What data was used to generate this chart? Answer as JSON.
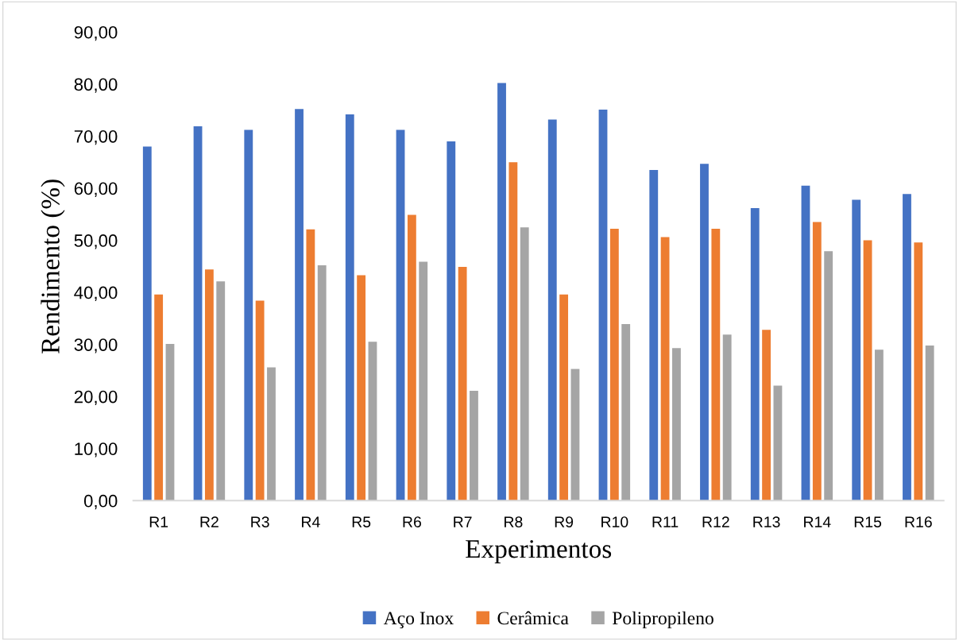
{
  "chart_data": {
    "type": "bar",
    "xlabel": "Experimentos",
    "ylabel": "Rendimento (%)",
    "categories": [
      "R1",
      "R2",
      "R3",
      "R4",
      "R5",
      "R6",
      "R7",
      "R8",
      "R9",
      "R10",
      "R11",
      "R12",
      "R13",
      "R14",
      "R15",
      "R16"
    ],
    "series": [
      {
        "name": "Aço Inox",
        "color": "#4472c4",
        "values": [
          68.0,
          71.9,
          71.2,
          75.2,
          74.2,
          71.2,
          69.0,
          80.2,
          73.2,
          75.1,
          63.5,
          64.7,
          56.2,
          60.5,
          57.8,
          58.9
        ]
      },
      {
        "name": "Cerâmica",
        "color": "#ed7d31",
        "values": [
          39.6,
          44.4,
          38.4,
          52.1,
          43.3,
          54.9,
          44.9,
          65.0,
          39.6,
          52.2,
          50.6,
          52.2,
          32.8,
          53.5,
          50.0,
          49.6
        ]
      },
      {
        "name": "Polipropileno",
        "color": "#a5a5a5",
        "values": [
          30.1,
          42.1,
          25.6,
          45.2,
          30.5,
          45.9,
          21.1,
          52.5,
          25.3,
          33.9,
          29.3,
          31.9,
          22.1,
          47.9,
          29.0,
          29.8
        ]
      }
    ],
    "ylim": [
      0,
      90
    ],
    "yticks": [
      {
        "value": 0,
        "label": "0,00"
      },
      {
        "value": 10,
        "label": "10,00"
      },
      {
        "value": 20,
        "label": "20,00"
      },
      {
        "value": 30,
        "label": "30,00"
      },
      {
        "value": 40,
        "label": "40,00"
      },
      {
        "value": 50,
        "label": "50,00"
      },
      {
        "value": 60,
        "label": "60,00"
      },
      {
        "value": 70,
        "label": "70,00"
      },
      {
        "value": 80,
        "label": "80,00"
      },
      {
        "value": 90,
        "label": "90,00"
      }
    ],
    "grid": false,
    "legend": "bottom"
  }
}
